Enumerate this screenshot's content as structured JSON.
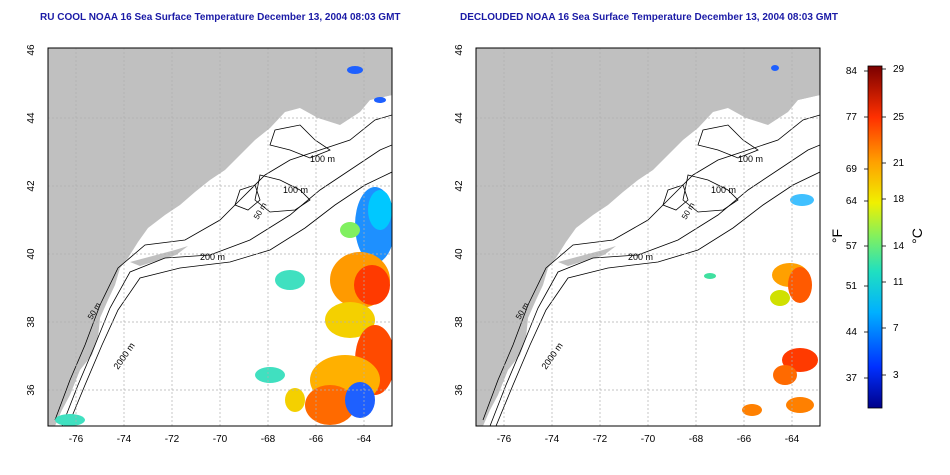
{
  "left_panel": {
    "title": "RU COOL NOAA 16 Sea Surface Temperature December 13, 2004 08:03 GMT",
    "x_ticks": [
      "-76",
      "-74",
      "-72",
      "-70",
      "-68",
      "-66",
      "-64"
    ],
    "y_ticks": [
      "36",
      "38",
      "40",
      "42",
      "44",
      "46"
    ],
    "contour_labels": [
      "100 m",
      "100 m",
      "50 m",
      "200 m",
      "50 m",
      "2000 m"
    ]
  },
  "right_panel": {
    "title": "DECLOUDED NOAA 16 Sea Surface Temperature December 13, 2004 08:03 GMT",
    "x_ticks": [
      "-76",
      "-74",
      "-72",
      "-70",
      "-68",
      "-66",
      "-64"
    ],
    "y_ticks": [
      "36",
      "38",
      "40",
      "42",
      "44",
      "46"
    ],
    "contour_labels": [
      "100 m",
      "100 m",
      "50 m",
      "200 m",
      "50 m",
      "2000 m"
    ]
  },
  "colorbar": {
    "fahrenheit_label": "°F",
    "celsius_label": "°C",
    "fahrenheit_ticks": [
      "84",
      "77",
      "69",
      "64",
      "57",
      "51",
      "44",
      "37"
    ],
    "celsius_ticks": [
      "29",
      "25",
      "21",
      "18",
      "14",
      "11",
      "7",
      "3"
    ]
  },
  "colors": {
    "land": "#c0c0c0",
    "title": "#1a1aa6",
    "contour": "#000000",
    "colorbar_top": "#7a0000",
    "colorbar_bottom": "#00008a"
  }
}
